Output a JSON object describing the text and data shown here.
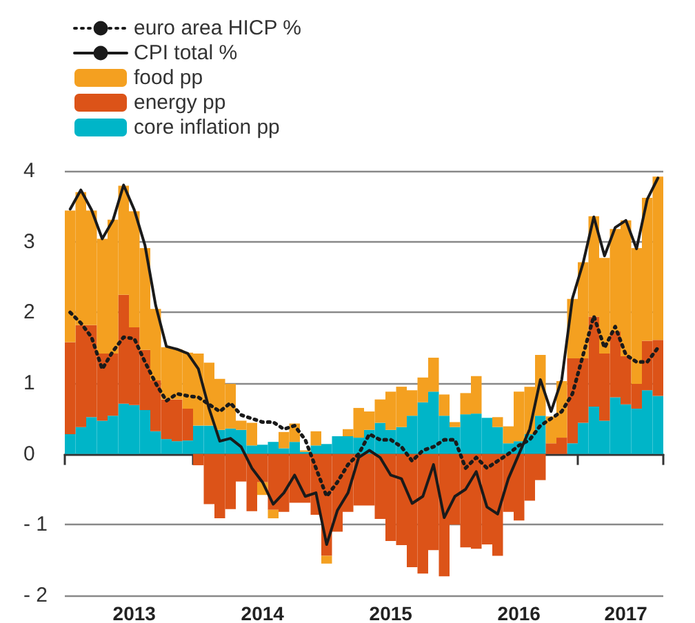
{
  "chart_data": {
    "type": "bar",
    "stacked": true,
    "legend": "top left",
    "grid": "y",
    "marker": "none",
    "categories": [
      null,
      null,
      null,
      null,
      null,
      null,
      "2013",
      null,
      null,
      null,
      null,
      null,
      null,
      null,
      null,
      null,
      null,
      null,
      "2014",
      null,
      null,
      null,
      null,
      null,
      null,
      null,
      null,
      null,
      null,
      null,
      "2015",
      null,
      null,
      null,
      null,
      null,
      null,
      null,
      null,
      null,
      null,
      null,
      "2016",
      null,
      null,
      null,
      null,
      null,
      null,
      null,
      null,
      null,
      "2017",
      null,
      null,
      null
    ],
    "ylim": [
      -2,
      4
    ],
    "yticks": [
      {
        "value": -2,
        "label": "- 2"
      },
      {
        "value": -1,
        "label": "- 1"
      },
      0,
      1,
      2,
      3,
      4
    ],
    "series": [
      {
        "name": "core inflation pp",
        "color": "#00b5c8",
        "values": [
          0.28,
          0.38,
          0.52,
          0.47,
          0.54,
          0.71,
          0.69,
          0.62,
          0.32,
          0.21,
          0.18,
          0.19,
          0.4,
          0.4,
          0.34,
          0.36,
          0.34,
          0.12,
          0.13,
          0.17,
          0.08,
          0.17,
          0.03,
          0.12,
          0.14,
          0.25,
          0.25,
          0.23,
          0.34,
          0.44,
          0.34,
          0.38,
          0.54,
          0.73,
          0.88,
          0.54,
          0.38,
          0.56,
          0.57,
          0.51,
          0.38,
          0.15,
          0.18,
          0.28,
          0.54,
          0,
          0,
          0.15,
          0.44,
          0.67,
          0.47,
          0.8,
          0.7,
          0.64,
          0.9,
          0.82
        ]
      },
      {
        "name": "energy pp",
        "color": "#dc5318",
        "values": [
          1.3,
          1.44,
          1.3,
          0.95,
          0.88,
          1.54,
          1.1,
          0.85,
          0.72,
          0.56,
          0.59,
          0.45,
          -0.16,
          -0.71,
          -0.91,
          -0.78,
          -0.39,
          -0.81,
          -0.4,
          -0.79,
          -0.82,
          -0.69,
          -0.69,
          -0.86,
          -1.44,
          -1.1,
          -0.82,
          -0.73,
          -0.73,
          -0.92,
          -1.23,
          -1.29,
          -1.6,
          -1.69,
          -1.36,
          -1.73,
          -1.0,
          -1.32,
          -1.34,
          -1.28,
          -1.44,
          -0.82,
          -0.94,
          -0.66,
          -0.37,
          0.15,
          0.23,
          1.2,
          0.91,
          1.27,
          0.95,
          0.93,
          0.68,
          0.35,
          0.7,
          0.79
        ]
      },
      {
        "name": "food pp",
        "color": "#f4a020",
        "values": [
          1.86,
          1.88,
          1.62,
          1.62,
          1.89,
          1.54,
          1.64,
          1.44,
          1.01,
          0.74,
          0.71,
          0.79,
          1.02,
          0.89,
          0.72,
          0.63,
          0.13,
          0.32,
          -0.18,
          -0.12,
          0.23,
          0.26,
          0.02,
          0.2,
          -0.11,
          0,
          0.1,
          0.42,
          0.26,
          0.33,
          0.54,
          0.57,
          0.36,
          0.35,
          0.48,
          0.3,
          0.07,
          0.3,
          0.53,
          0,
          0.14,
          0.24,
          0.7,
          0.67,
          0.86,
          0.38,
          0.8,
          0.84,
          1.36,
          1.42,
          1.35,
          1.45,
          1.92,
          1.92,
          2.02,
          2.31
        ]
      },
      {
        "name": "CPI total %",
        "type": "line",
        "line_style": "solid",
        "color": "#1a1a1a",
        "values": [
          3.46,
          3.73,
          3.45,
          3.04,
          3.3,
          3.8,
          3.45,
          2.95,
          2.1,
          1.52,
          1.48,
          1.42,
          1.2,
          0.64,
          0.18,
          0.22,
          0.1,
          -0.2,
          -0.4,
          -0.71,
          -0.55,
          -0.3,
          -0.6,
          -0.55,
          -1.28,
          -0.8,
          -0.55,
          -0.05,
          0.05,
          -0.05,
          -0.3,
          -0.35,
          -0.7,
          -0.6,
          -0.15,
          -0.9,
          -0.6,
          -0.5,
          -0.25,
          -0.75,
          -0.85,
          -0.35,
          0,
          0.35,
          1.05,
          0.6,
          1.05,
          2.2,
          2.7,
          3.35,
          2.8,
          3.2,
          3.3,
          2.9,
          3.6,
          3.9
        ]
      },
      {
        "name": "euro area HICP %",
        "type": "line",
        "line_style": "dotted",
        "color": "#1a1a1a",
        "values": [
          2.0,
          1.85,
          1.65,
          1.2,
          1.45,
          1.65,
          1.63,
          1.3,
          1.0,
          0.75,
          0.85,
          0.82,
          0.8,
          0.7,
          0.6,
          0.72,
          0.55,
          0.5,
          0.45,
          0.45,
          0.35,
          0.4,
          0.2,
          -0.2,
          -0.6,
          -0.4,
          -0.15,
          0.0,
          0.28,
          0.2,
          0.2,
          0.1,
          -0.1,
          0.05,
          0.1,
          0.2,
          0.2,
          -0.2,
          -0.05,
          -0.2,
          -0.1,
          0.0,
          0.12,
          0.2,
          0.4,
          0.5,
          0.6,
          0.85,
          1.4,
          1.95,
          1.5,
          1.8,
          1.4,
          1.3,
          1.3,
          1.5
        ]
      }
    ]
  }
}
